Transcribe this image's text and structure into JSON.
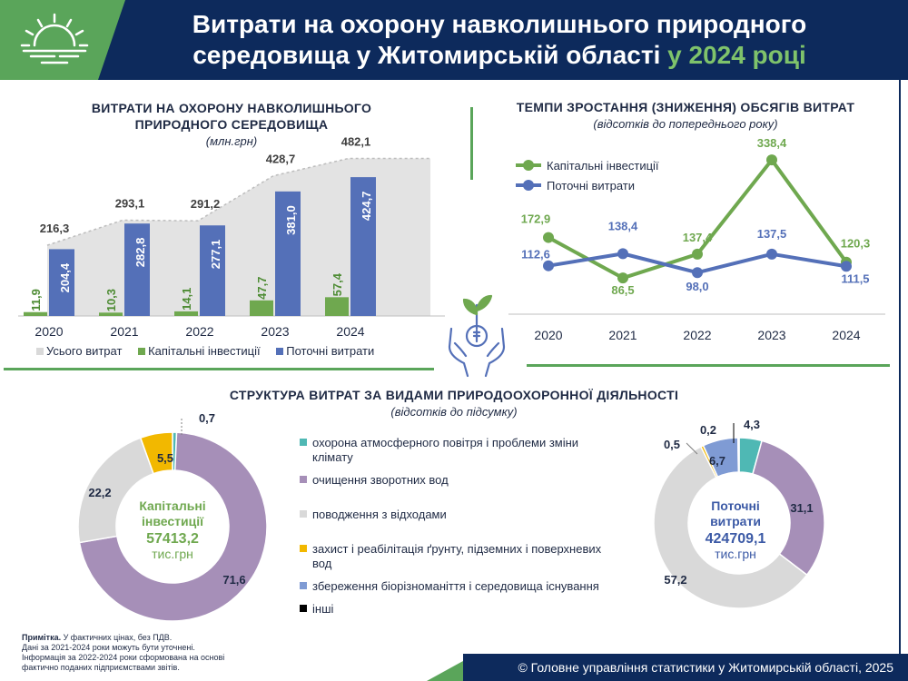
{
  "header": {
    "title_line1": "Витрати на охорону навколишнього природного",
    "title_line2": "середовища у Житомирській області",
    "title_year": "у 2024 році"
  },
  "colors": {
    "navy": "#0d2a5c",
    "green": "#5aa55a",
    "capital": "#6fa84f",
    "current": "#5470b8",
    "total": "#d9d9d9"
  },
  "bar_panel": {
    "title_line1": "ВИТРАТИ НА ОХОРОНУ НАВКОЛИШНЬОГО",
    "title_line2": "ПРИРОДНОГО СЕРЕДОВИЩА",
    "subtitle": "(млн.грн)",
    "legend": [
      "Усього витрат",
      "Капітальні інвестиції",
      "Поточні витрати"
    ]
  },
  "line_panel": {
    "title": "ТЕМПИ ЗРОСТАННЯ (ЗНИЖЕННЯ) ОБСЯГІВ ВИТРАТ",
    "subtitle": "(відсотків до попереднього року)",
    "legend": [
      "Капітальні інвестиції",
      "Поточні витрати"
    ]
  },
  "structure_panel": {
    "title": "СТРУКТУРА ВИТРАТ ЗА ВИДАМИ ПРИРОДООХОРОННОЇ ДІЯЛЬНОСТІ",
    "subtitle": "(відсотків до підсумку)",
    "legend": [
      {
        "label": "охорона атмосферного повітря і проблеми зміни клімату",
        "color": "#4fb8b4"
      },
      {
        "label": "очищення зворотних вод",
        "color": "#a68fb8"
      },
      {
        "label": "поводження з відходами",
        "color": "#d9d9d9"
      },
      {
        "label": "захист і реабілітація ґрунту, підземних і поверхневих вод",
        "color": "#f2b800"
      },
      {
        "label": "збереження біорізноманіття і середовища існування",
        "color": "#7f9bd4"
      },
      {
        "label": "інші",
        "color": "#000000"
      }
    ],
    "capital_center": {
      "line1": "Капітальні",
      "line2": "інвестиції",
      "value": "57413,2",
      "unit": "тис.грн"
    },
    "current_center": {
      "line1": "Поточні",
      "line2": "витрати",
      "value": "424709,1",
      "unit": "тис.грн"
    }
  },
  "note": {
    "bold": "Примітка.",
    "line1": " У фактичних цінах, без ПДВ.",
    "line2": "Дані за 2021-2024 роки можуть бути уточнені.",
    "line3": "Інформація за 2022-2024 роки сформована на основі",
    "line4": "фактично поданих підприємствами звітів."
  },
  "footer": "© Головне управління статистики у Житомирській області, 2025",
  "chart_data": [
    {
      "type": "bar",
      "categories": [
        "2020",
        "2021",
        "2022",
        "2023",
        "2024"
      ],
      "series": [
        {
          "name": "Усього витрат",
          "values": [
            216.3,
            293.1,
            291.2,
            428.7,
            482.1
          ],
          "labels": [
            "216,3",
            "293,1",
            "291,2",
            "428,7",
            "482,1"
          ]
        },
        {
          "name": "Капітальні інвестиції",
          "values": [
            11.9,
            10.3,
            14.1,
            47.7,
            57.4
          ],
          "labels": [
            "11,9",
            "10,3",
            "14,1",
            "47,7",
            "57,4"
          ]
        },
        {
          "name": "Поточні витрати",
          "values": [
            204.4,
            282.8,
            277.1,
            381.0,
            424.7
          ],
          "labels": [
            "204,4",
            "282,8",
            "277,1",
            "381,0",
            "424,7"
          ]
        }
      ],
      "ylim": [
        0,
        500
      ]
    },
    {
      "type": "line",
      "categories": [
        "2020",
        "2021",
        "2022",
        "2023",
        "2024"
      ],
      "series": [
        {
          "name": "Капітальні інвестиції",
          "values": [
            172.9,
            86.5,
            137.4,
            338.4,
            120.3
          ],
          "labels": [
            "172,9",
            "86,5",
            "137,4",
            "338,4",
            "120,3"
          ]
        },
        {
          "name": "Поточні витрати",
          "values": [
            112.6,
            138.4,
            98.0,
            137.5,
            111.5
          ],
          "labels": [
            "112,6",
            "138,4",
            "98,0",
            "137,5",
            "111,5"
          ]
        }
      ],
      "ylim": [
        50,
        360
      ]
    },
    {
      "type": "pie",
      "name": "Капітальні інвестиції",
      "categories": [
        "охорона атмосферного повітря і проблеми зміни клімату",
        "очищення зворотних вод",
        "поводження з відходами",
        "захист і реабілітація ґрунту, підземних і поверхневих вод",
        "збереження біорізноманіття і середовища існування",
        "інші"
      ],
      "values": [
        0.7,
        71.6,
        22.2,
        5.5,
        0.0,
        0.0
      ],
      "labels": [
        "0,7",
        "71,6",
        "22,2",
        "5,5",
        "",
        ""
      ]
    },
    {
      "type": "pie",
      "name": "Поточні витрати",
      "categories": [
        "охорона атмосферного повітря і проблеми зміни клімату",
        "очищення зворотних вод",
        "поводження з відходами",
        "захист і реабілітація ґрунту, підземних і поверхневих вод",
        "збереження біорізноманіття і середовища існування",
        "інші"
      ],
      "values": [
        4.3,
        31.1,
        57.2,
        0.5,
        6.7,
        0.2
      ],
      "labels": [
        "4,3",
        "31,1",
        "57,2",
        "0,5",
        "6,7",
        "0,2"
      ]
    }
  ]
}
